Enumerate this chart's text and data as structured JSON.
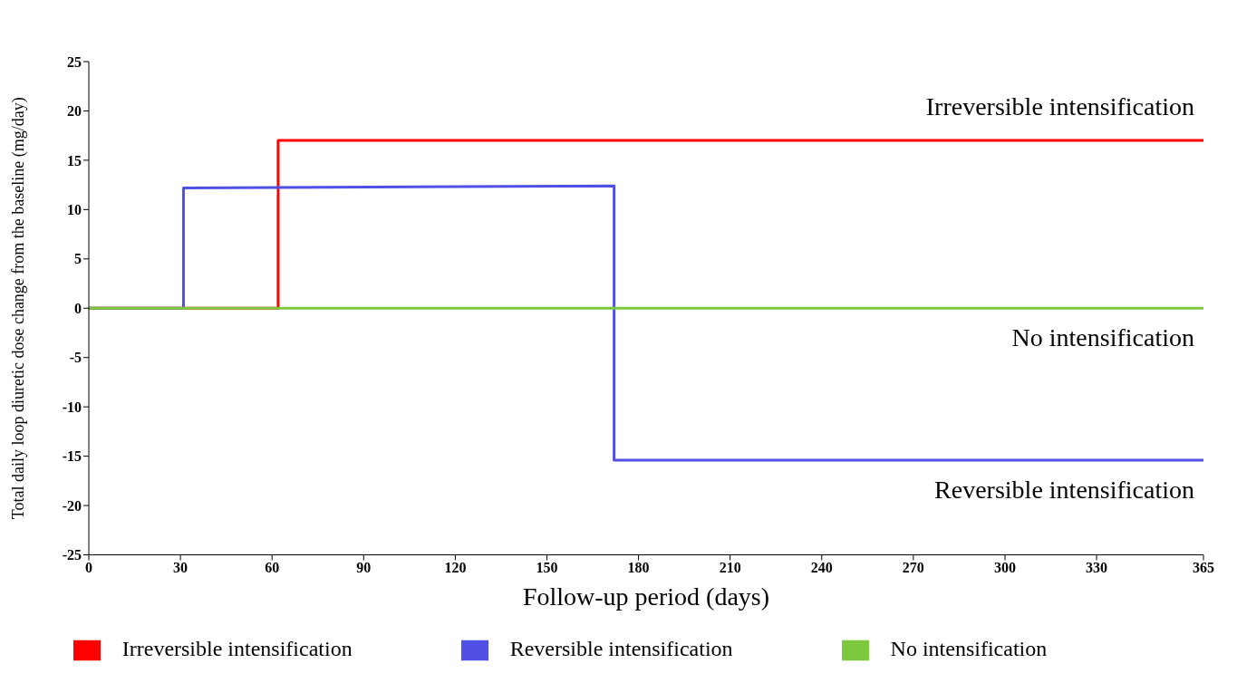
{
  "chart_data": {
    "type": "line",
    "xlabel": "Follow-up period (days)",
    "ylabel": "Total daily loop diuretic dose change from the baseline  (mg/day)",
    "xlim": [
      0,
      365
    ],
    "xticks": [
      0,
      30,
      60,
      90,
      120,
      150,
      180,
      210,
      240,
      270,
      300,
      330,
      365
    ],
    "ylim": [
      -25,
      25
    ],
    "yticks": [
      -25,
      -20,
      -15,
      -10,
      -5,
      0,
      5,
      10,
      15,
      20,
      25
    ],
    "legend": "bottom",
    "marker": "none",
    "line_style": "solid",
    "series": [
      {
        "name": "Irreversible intensification",
        "color": "#ff0000",
        "x": [
          0,
          62,
          62,
          365
        ],
        "values": [
          0,
          0,
          17,
          17
        ]
      },
      {
        "name": "Reversible intensification",
        "color": "#5050e6",
        "x": [
          0,
          31,
          31,
          172,
          172,
          365
        ],
        "values": [
          0,
          0,
          12.2,
          12.4,
          -15.4,
          -15.4
        ]
      },
      {
        "name": "No intensification",
        "color": "#7dc83c",
        "x": [
          0,
          365
        ],
        "values": [
          0,
          0
        ]
      }
    ]
  }
}
